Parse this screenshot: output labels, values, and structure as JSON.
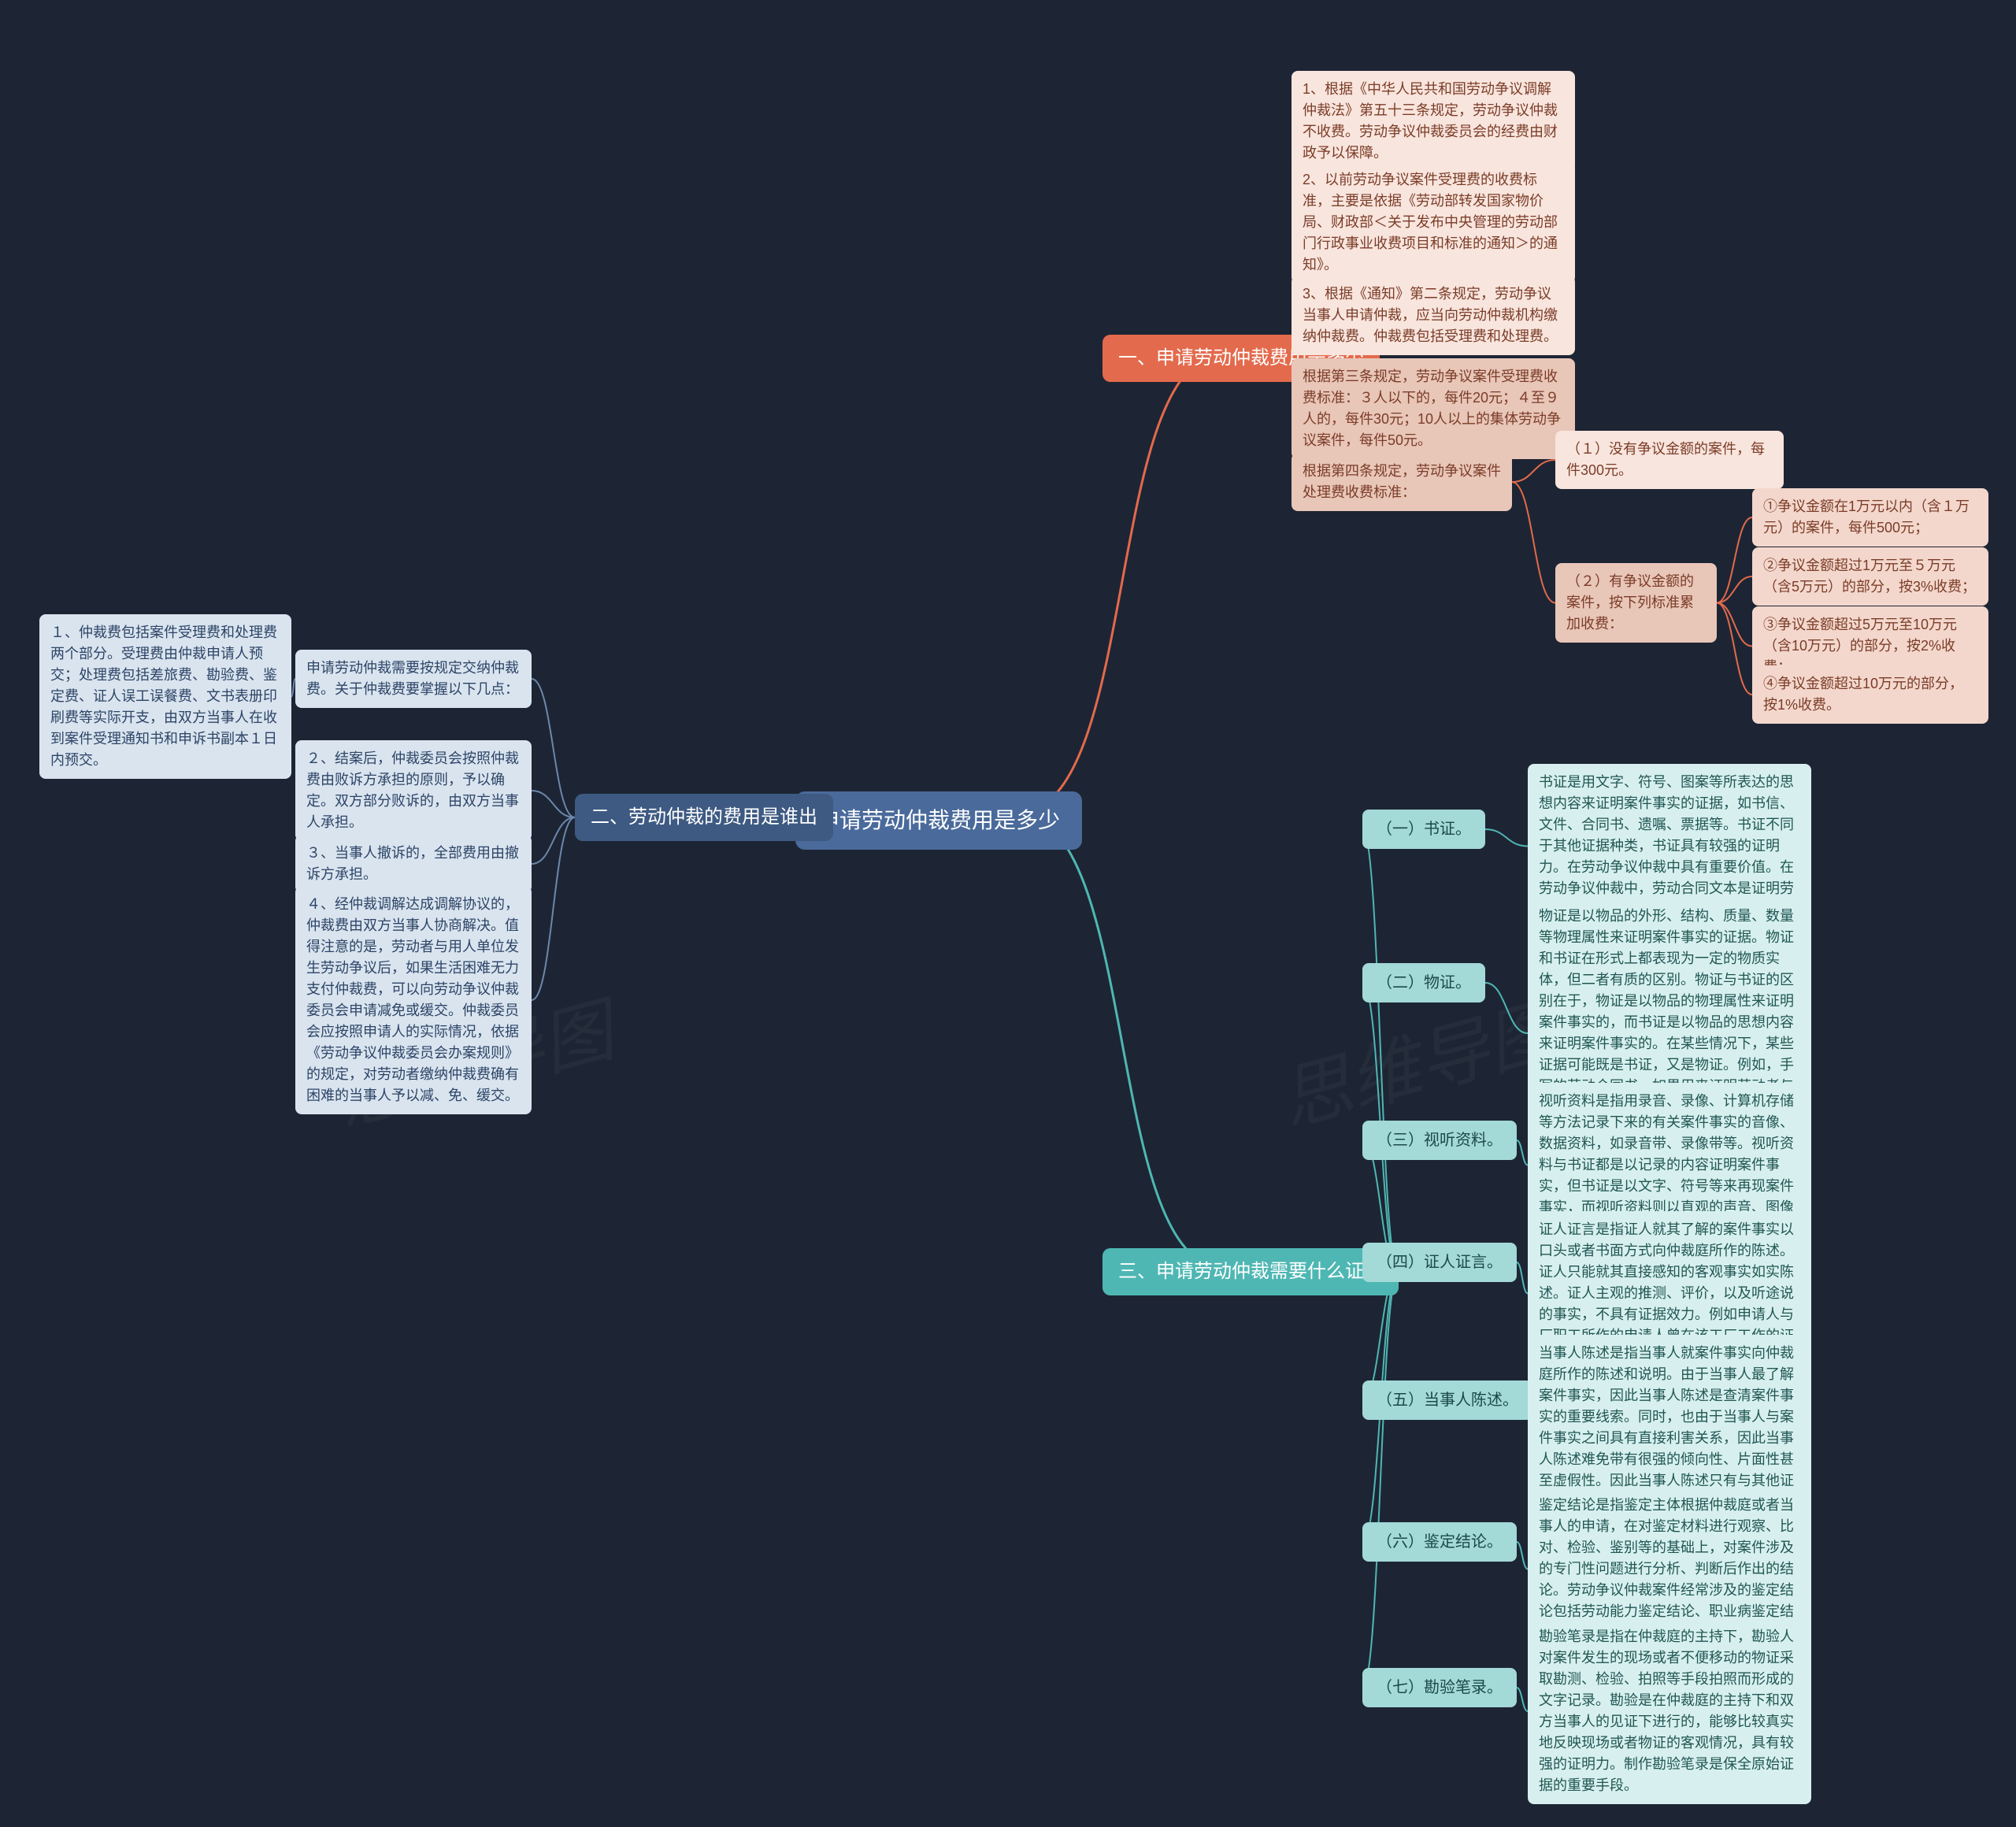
{
  "background": "#1d2534",
  "colors": {
    "root": "#4a6a9b",
    "branch1": "#e36a4c",
    "branch2": "#3e5a82",
    "branch3": "#4fb7b3",
    "leaf1": "#f8e5dd",
    "leaf1_alt": "#e8c6b8",
    "leaf1_sub": "#f3d7cc",
    "leaf2": "#d9e4ef",
    "leaf3": "#d7f0ef",
    "sub3": "#a3d9d7",
    "edge1": "#e36a4c",
    "edge2": "#3e5a82",
    "edge3": "#4fb7b3"
  },
  "root": {
    "label": "申请劳动仲裁费用是多少"
  },
  "branch1": {
    "label": "一、申请劳动仲裁费用是多少",
    "items": [
      "1、根据《中华人民共和国劳动争议调解仲裁法》第五十三条规定，劳动争议仲裁不收费。劳动争议仲裁委员会的经费由财政予以保障。",
      "2、以前劳动争议案件受理费的收费标准，主要是依据《劳动部转发国家物价局、财政部＜关于发布中央管理的劳动部门行政事业收费项目和标准的通知＞的通知》。",
      "3、根据《通知》第二条规定，劳动争议当事人申请仲裁，应当向劳动仲裁机构缴纳仲裁费。仲裁费包括受理费和处理费。",
      "根据第三条规定，劳动争议案件受理费收费标准：３人以下的，每件20元；４至９人的，每件30元；10人以上的集体劳动争议案件，每件50元。",
      "根据第四条规定，劳动争议案件处理费收费标准："
    ],
    "fee_none": "（１）没有争议金额的案件，每件300元。",
    "fee_has": "（２）有争议金额的案件，按下列标准累加收费：",
    "fee_rules": [
      "①争议金额在1万元以内（含１万元）的案件，每件500元；",
      "②争议金额超过1万元至５万元（含5万元）的部分，按3%收费；",
      "③争议金额超过5万元至10万元（含10万元）的部分，按2%收费；",
      "④争议金额超过10万元的部分，按1%收费。"
    ]
  },
  "branch2": {
    "label": "二、劳动仲裁的费用是谁出",
    "intro": "申请劳动仲裁需要按规定交纳仲裁费。关于仲裁费要掌握以下几点：",
    "items": [
      "１、仲裁费包括案件受理费和处理费两个部分。受理费由仲裁申请人预交；处理费包括差旅费、勘验费、鉴定费、证人误工误餐费、文书表册印刷费等实际开支，由双方当事人在收到案件受理通知书和申诉书副本１日内预交。",
      "２、结案后，仲裁委员会按照仲裁费由败诉方承担的原则，予以确定。双方部分败诉的，由双方当事人承担。",
      "３、当事人撤诉的，全部费用由撤诉方承担。",
      "４、经仲裁调解达成调解协议的，仲裁费由双方当事人协商解决。值得注意的是，劳动者与用人单位发生劳动争议后，如果生活困难无力支付仲裁费，可以向劳动争议仲裁委员会申请减免或缓交。仲裁委员会应按照申请人的实际情况，依据《劳动争议仲裁委员会办案规则》的规定，对劳动者缴纳仲裁费确有困难的当事人予以减、免、缓交。"
    ]
  },
  "branch3": {
    "label": "三、申请劳动仲裁需要什么证据",
    "items": [
      {
        "title": "（一）书证。",
        "text": "书证是用文字、符号、图案等所表达的思想内容来证明案件事实的证据，如书信、文件、合同书、遗嘱、票据等。书证不同于其他证据种类，书证具有较强的证明力。在劳动争议仲裁中具有重要价值。在劳动争议仲裁中，劳动合同文本是证明劳动关系存在的最有力的证据。"
      },
      {
        "title": "（二）物证。",
        "text": "物证是以物品的外形、结构、质量、数量等物理属性来证明案件事实的证据。物证和书证在形式上都表现为一定的物质实体，但二者有质的区别。物证与书证的区别在于，物证是以物品的物理属性来证明案件事实的，而书证是以物品的思想内容来证明案件事实的。在某些情况下，某些证据可能既是书证，又是物证。例如，手写的劳动合同书，如果用来证明劳动者与用人单位之间的权利义务关系，则是书证，如果用来证明书写者的书写习惯，则是物证。"
      },
      {
        "title": "（三）视听资料。",
        "text": "视听资料是指用录音、录像、计算机存储等方法记录下来的有关案件事实的音像、数据资料，如录音带、录像带等。视听资料与书证都是以记录的内容证明案件事实，但书证是以文字、符号等来再现案件事实，而视听资料则以直观的声音、图像等来再现案件事实。"
      },
      {
        "title": "（四）证人证言。",
        "text": "证人证言是指证人就其了解的案件事实以口头或者书面方式向仲裁庭所作的陈述。证人只能就其直接感知的客观事实如实陈述。证人主观的推测、评价，以及听途说的事实，不具有证据效力。例如申请人与厂职工所作的申请人曾在该工厂工作的证言。"
      },
      {
        "title": "（五）当事人陈述。",
        "text": "当事人陈述是指当事人就案件事实向仲裁庭所作的陈述和说明。由于当事人最了解案件事实，因此当事人陈述是查清案件事实的重要线索。同时，也由于当事人与案件事实之间具有直接利害关系，因此当事人陈述难免带有很强的倾向性、片面性甚至虚假性。因此当事人陈述只有与其他证据结合起来，才能作为认定事实的根据。"
      },
      {
        "title": "（六）鉴定结论。",
        "text": "鉴定结论是指鉴定主体根据仲裁庭或者当事人的申请，在对鉴定材料进行观察、比对、检验、鉴别等的基础上，对案件涉及的专门性问题进行分析、判断后作出的结论。劳动争议仲裁案件经常涉及的鉴定结论包括劳动能力鉴定结论、职业病鉴定结论等。"
      },
      {
        "title": "（七）勘验笔录。",
        "text": "勘验笔录是指在仲裁庭的主持下，勘验人对案件发生的现场或者不便移动的物证采取勘测、检验、拍照等手段拍照而形成的文字记录。勘验是在仲裁庭的主持下和双方当事人的见证下进行的，能够比较真实地反映现场或者物证的客观情况，具有较强的证明力。制作勘验笔录是保全原始证据的重要手段。"
      }
    ]
  }
}
